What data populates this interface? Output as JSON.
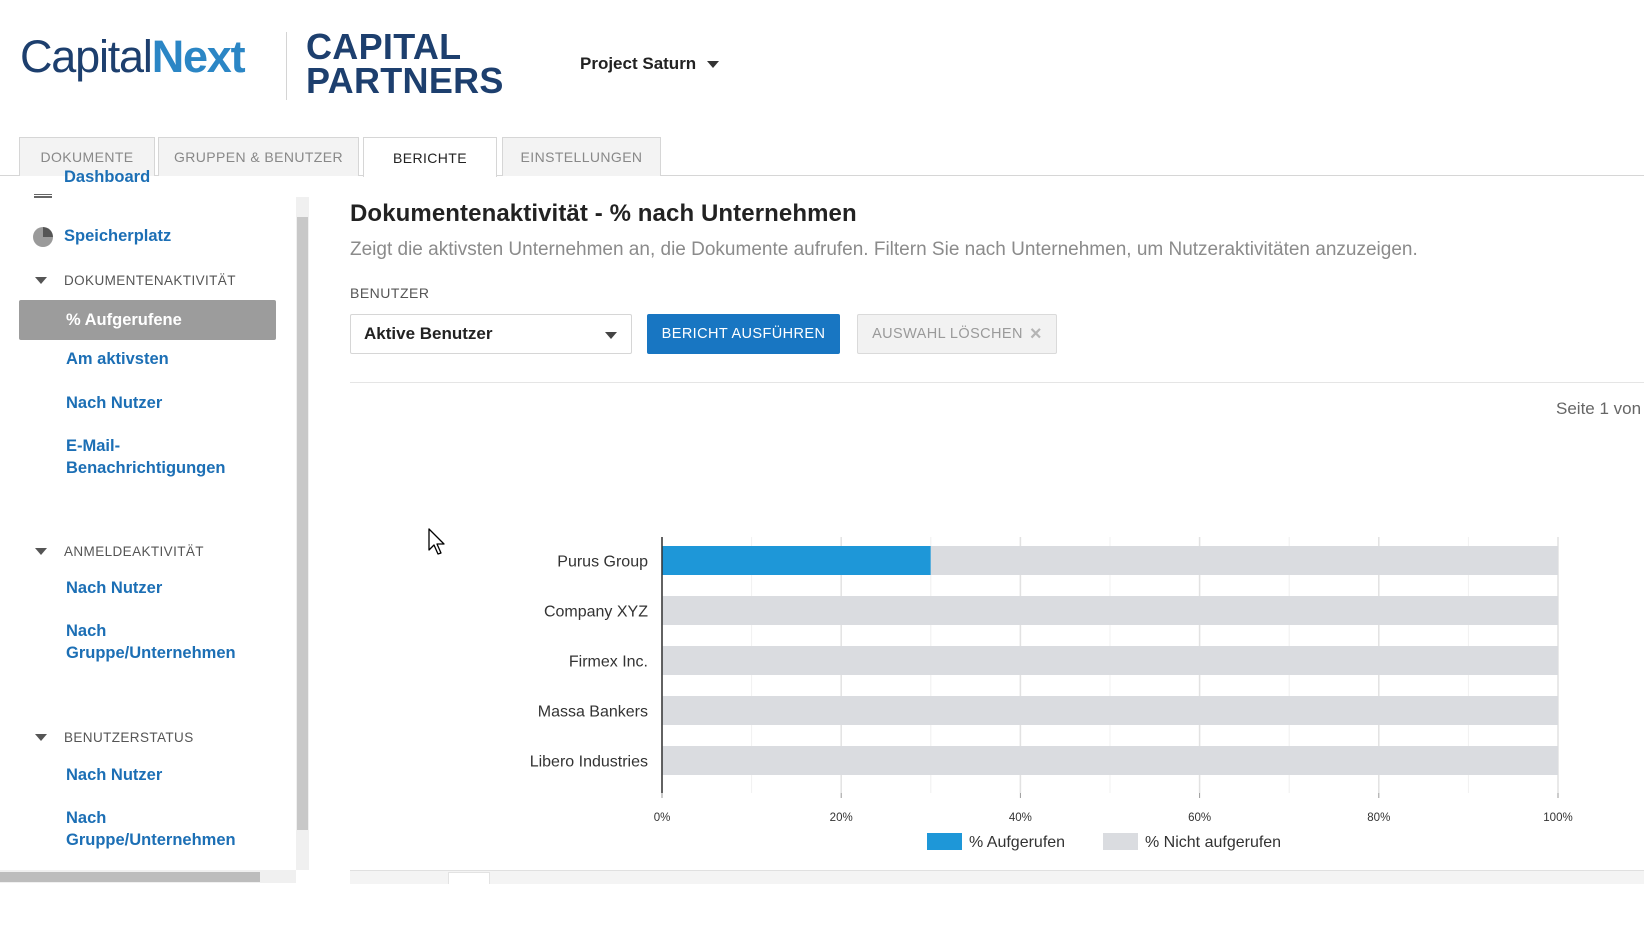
{
  "header": {
    "logo_capital": "Capital",
    "logo_next": "Next",
    "logo_partners_line1": "CAPITAL",
    "logo_partners_line2": "PARTNERS",
    "project": "Project Saturn"
  },
  "tabs": [
    {
      "label": "DOKUMENTE"
    },
    {
      "label": "GRUPPEN & BENUTZER"
    },
    {
      "label": "BERICHTE"
    },
    {
      "label": "EINSTELLUNGEN"
    }
  ],
  "sidebar": {
    "dashboard": "Dashboard",
    "storage": "Speicherplatz",
    "doc_activity": "DOKUMENTENAKTIVITÄT",
    "doc_items": [
      "% Aufgerufene",
      "Am aktivsten",
      "Nach Nutzer",
      "E-Mail-Benachrichtigungen"
    ],
    "login_activity": "ANMELDEAKTIVITÄT",
    "login_items": [
      "Nach Nutzer",
      "Nach Gruppe/Unternehmen"
    ],
    "user_status": "BENUTZERSTATUS",
    "status_items": [
      "Nach Nutzer",
      "Nach Gruppe/Unternehmen"
    ]
  },
  "main": {
    "title": "Dokumentenaktivität - % nach Unternehmen",
    "subtitle": "Zeigt die aktivsten Unternehmen an, die Dokumente aufrufen. Filtern Sie nach Unternehmen, um Nutzeraktivitäten anzuzeigen.",
    "user_label": "BENUTZER",
    "user_select": "Aktive Benutzer",
    "run_button": "BERICHT AUSFÜHREN",
    "clear_button": "AUSWAHL LÖSCHEN",
    "page_info": "Seite 1 von"
  },
  "colors": {
    "accent": "#1876c2",
    "bar_viewed": "#1e97d8",
    "bar_not_viewed": "#dadce0"
  },
  "chart_data": {
    "type": "bar",
    "orientation": "horizontal",
    "stacked": true,
    "categories": [
      "Purus Group",
      "Company XYZ",
      "Firmex Inc.",
      "Massa Bankers",
      "Libero Industries"
    ],
    "series": [
      {
        "name": "% Aufgerufen",
        "values": [
          30,
          0,
          0,
          0,
          0
        ]
      },
      {
        "name": "% Nicht aufgerufen",
        "values": [
          70,
          100,
          100,
          100,
          100
        ]
      }
    ],
    "xticks": [
      "0%",
      "20%",
      "40%",
      "60%",
      "80%",
      "100%"
    ],
    "xlim": [
      0,
      100
    ],
    "grid": true,
    "legend": "bottom"
  }
}
